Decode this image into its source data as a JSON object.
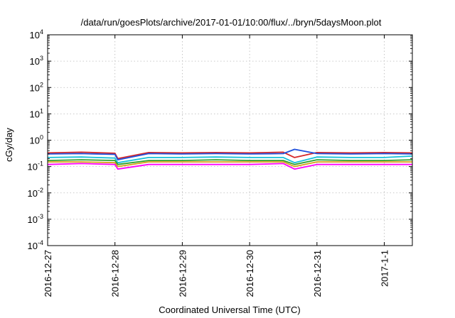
{
  "chart_data": {
    "type": "line",
    "title": "/data/run/goesPlots/archive/2017-01-01/10:00/flux/../bryn/5daysMoon.plot",
    "xlabel": "Coordinated Universal Time (UTC)",
    "ylabel": "cGy/day",
    "y_scale": "log",
    "ylim": [
      0.0001,
      10000
    ],
    "xlim": [
      "2016-12-27 00:00",
      "2017-01-01 10:00"
    ],
    "grid": true,
    "legend": "none",
    "y_ticks": [
      {
        "base": "10",
        "exp": "-4",
        "value": 0.0001
      },
      {
        "base": "10",
        "exp": "-3",
        "value": 0.001
      },
      {
        "base": "10",
        "exp": "-2",
        "value": 0.01
      },
      {
        "base": "10",
        "exp": "-1",
        "value": 0.1
      },
      {
        "base": "10",
        "exp": "0",
        "value": 1
      },
      {
        "base": "10",
        "exp": "1",
        "value": 10
      },
      {
        "base": "10",
        "exp": "2",
        "value": 100
      },
      {
        "base": "10",
        "exp": "3",
        "value": 1000
      },
      {
        "base": "10",
        "exp": "4",
        "value": 10000
      }
    ],
    "x_ticks": [
      {
        "label": "2016-12-27",
        "value": "2016-12-27 00:00"
      },
      {
        "label": "2016-12-28",
        "value": "2016-12-28 00:00"
      },
      {
        "label": "2016-12-29",
        "value": "2016-12-29 00:00"
      },
      {
        "label": "2016-12-30",
        "value": "2016-12-30 00:00"
      },
      {
        "label": "2016-12-31",
        "value": "2016-12-31 00:00"
      },
      {
        "label": "2017-1-1",
        "value": "2017-01-01 00:00"
      }
    ],
    "x": [
      "2016-12-27 00:00",
      "2016-12-27 12:00",
      "2016-12-28 00:00",
      "2016-12-28 01:00",
      "2016-12-28 12:00",
      "2016-12-29 00:00",
      "2016-12-29 12:00",
      "2016-12-30 00:00",
      "2016-12-30 12:00",
      "2016-12-30 16:00",
      "2016-12-31 00:00",
      "2016-12-31 12:00",
      "2017-01-01 00:00",
      "2017-01-01 10:00"
    ],
    "series": [
      {
        "color": "#d62728",
        "values": [
          0.33,
          0.35,
          0.32,
          0.2,
          0.34,
          0.33,
          0.34,
          0.33,
          0.35,
          0.22,
          0.34,
          0.33,
          0.34,
          0.33
        ]
      },
      {
        "color": "#1f4fdc",
        "values": [
          0.3,
          0.31,
          0.29,
          0.18,
          0.31,
          0.3,
          0.31,
          0.3,
          0.31,
          0.45,
          0.31,
          0.3,
          0.31,
          0.3
        ]
      },
      {
        "color": "#17c0d8",
        "values": [
          0.22,
          0.23,
          0.21,
          0.14,
          0.22,
          0.22,
          0.23,
          0.22,
          0.22,
          0.14,
          0.23,
          0.22,
          0.22,
          0.25
        ]
      },
      {
        "color": "#2ca02c",
        "values": [
          0.17,
          0.18,
          0.17,
          0.12,
          0.17,
          0.17,
          0.18,
          0.17,
          0.17,
          0.12,
          0.18,
          0.17,
          0.17,
          0.18
        ]
      },
      {
        "color": "#d4a017",
        "values": [
          0.15,
          0.15,
          0.14,
          0.1,
          0.15,
          0.15,
          0.15,
          0.15,
          0.15,
          0.1,
          0.15,
          0.15,
          0.15,
          0.15
        ]
      },
      {
        "color": "#ff00ff",
        "values": [
          0.12,
          0.13,
          0.12,
          0.08,
          0.12,
          0.12,
          0.12,
          0.12,
          0.13,
          0.08,
          0.12,
          0.12,
          0.12,
          0.12
        ]
      }
    ]
  }
}
